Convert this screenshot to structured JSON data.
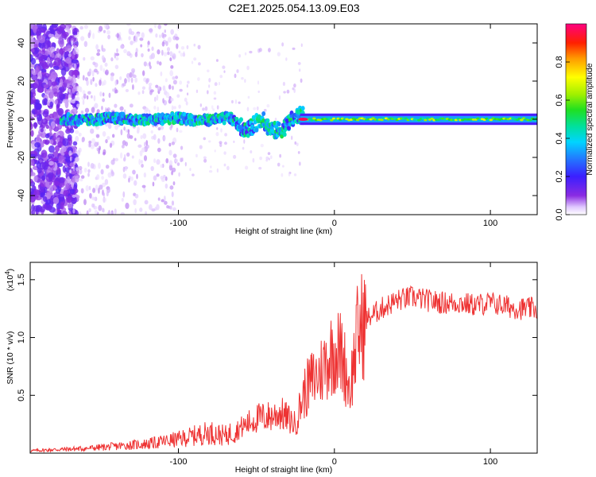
{
  "figure": {
    "title": "C2E1.2025.054.13.09.E03"
  },
  "chart_data": [
    {
      "type": "heatmap",
      "title": "",
      "xlabel": "Height of straight line (km)",
      "ylabel": "Frequency (Hz)",
      "xlim": [
        -195,
        130
      ],
      "ylim": [
        -50,
        50
      ],
      "xticks": [
        -100,
        0,
        100
      ],
      "xtick_labels": [
        "-100",
        "0",
        "100"
      ],
      "yticks": [
        -40,
        -20,
        0,
        20,
        40
      ],
      "ytick_labels": [
        "-40",
        "-20",
        "0",
        "20",
        "40"
      ],
      "grid": false,
      "colorbar": {
        "label": "Normalized spectral amplitude",
        "range": [
          0,
          1
        ],
        "ticks": [
          0.0,
          0.2,
          0.4,
          0.6,
          0.8
        ],
        "tick_labels": [
          "0.0",
          "0.2",
          "0.4",
          "0.6",
          "0.8"
        ],
        "colormap": "rainbow (purple-blue-cyan-green-yellow-orange-red-magenta)"
      },
      "description_of_features": {
        "main_band_center_hz": 0,
        "scattered_low_amplitude_region_km": [
          -195,
          -170
        ],
        "perturbed_band_region_km": [
          -170,
          -20
        ],
        "stable_band_region_km": [
          -20,
          130
        ],
        "peak_amplitude_near_km": -20
      }
    },
    {
      "type": "line",
      "title": "",
      "xlabel": "Height of straight line (km)",
      "ylabel": "SNR (10 * v/v)",
      "y_multiplier_label": "(x10",
      "y_multiplier_exponent": "4",
      "y_multiplier_close": ")",
      "xlim": [
        -195,
        130
      ],
      "ylim": [
        0,
        1.65
      ],
      "xticks": [
        -100,
        0,
        100
      ],
      "xtick_labels": [
        "-100",
        "0",
        "100"
      ],
      "yticks": [
        0.5,
        1.0,
        1.5
      ],
      "ytick_labels": [
        "0.5",
        "1.0",
        "1.5"
      ],
      "grid": false,
      "series": [
        {
          "color": "#ee3333",
          "x": [
            -195,
            -180,
            -160,
            -140,
            -120,
            -100,
            -90,
            -80,
            -70,
            -60,
            -50,
            -40,
            -35,
            -30,
            -25,
            -20,
            -15,
            -10,
            -5,
            0,
            5,
            10,
            15,
            20,
            30,
            40,
            50,
            60,
            70,
            80,
            90,
            100,
            110,
            120,
            130
          ],
          "values": [
            0.02,
            0.03,
            0.04,
            0.06,
            0.08,
            0.12,
            0.15,
            0.18,
            0.15,
            0.22,
            0.3,
            0.32,
            0.35,
            0.3,
            0.25,
            0.5,
            0.62,
            0.68,
            0.8,
            0.9,
            0.85,
            0.55,
            1.05,
            1.15,
            1.25,
            1.32,
            1.35,
            1.32,
            1.3,
            1.3,
            1.28,
            1.3,
            1.27,
            1.25,
            1.25
          ]
        }
      ]
    }
  ]
}
